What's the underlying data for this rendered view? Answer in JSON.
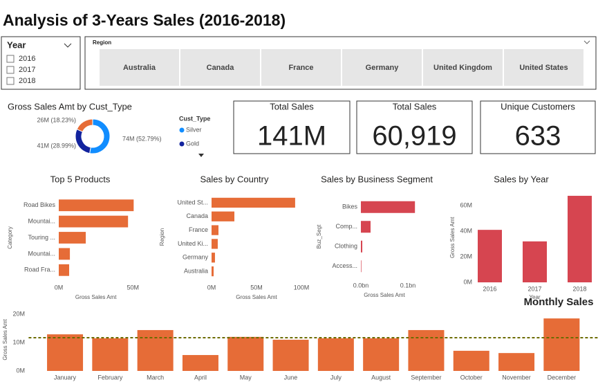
{
  "title": "Analysis of 3-Years Sales (2016-2018)",
  "year_slicer": {
    "title": "Year",
    "options": [
      "2016",
      "2017",
      "2018"
    ]
  },
  "region_slicer": {
    "title": "Region",
    "options": [
      "Australia",
      "Canada",
      "France",
      "Germany",
      "United Kingdom",
      "United States"
    ]
  },
  "cards": [
    {
      "label": "Total Sales",
      "value": "141M"
    },
    {
      "label": "Total Sales",
      "value": "60,919"
    },
    {
      "label": "Unique Customers",
      "value": "633"
    }
  ],
  "chart_data": [
    {
      "type": "pie",
      "donut": true,
      "title": "Gross Sales Amt by Cust_Type",
      "legend_title": "Cust_Type",
      "categories": [
        "Silver",
        "Gold",
        null
      ],
      "values": [
        52.79,
        28.99,
        18.23
      ],
      "value_labels": [
        "74M (52.79%)",
        "41M (28.99%)",
        "26M (18.23%)"
      ],
      "colors": [
        "#118DFF",
        "#12239E",
        "#E66C37"
      ]
    },
    {
      "type": "bar",
      "orientation": "horizontal",
      "title": "Top 5 Products",
      "categories": [
        "Road Bikes",
        "Mountai...",
        "Touring ...",
        "Mountai...",
        "Road Fra..."
      ],
      "values": [
        50.5,
        46.7,
        18.2,
        7.5,
        7
      ],
      "color": "#E66C37",
      "xlim": [
        0,
        55
      ],
      "xticks": [
        {
          "value": 0,
          "label": "0M"
        },
        {
          "value": 50,
          "label": "50M"
        }
      ],
      "x_label": "Gross Sales Amt",
      "y_label": "Category"
    },
    {
      "type": "bar",
      "orientation": "horizontal",
      "title": "Sales by Country",
      "categories": [
        "United St...",
        "Canada",
        "France",
        "United Ki...",
        "Germany",
        "Australia"
      ],
      "values": [
        93,
        25.4,
        7.7,
        6.9,
        3.8,
        2.3
      ],
      "color": "#E66C37",
      "xlim": [
        0,
        100
      ],
      "xticks": [
        {
          "value": 0,
          "label": "0M"
        },
        {
          "value": 50,
          "label": "50M"
        },
        {
          "value": 100,
          "label": "100M"
        }
      ],
      "x_label": "Gross Sales Amt",
      "y_label": "Region"
    },
    {
      "type": "bar",
      "orientation": "horizontal",
      "title": "Sales by Business Segment",
      "categories": [
        "Bikes",
        "Comp...",
        "Clothing",
        "Access..."
      ],
      "values": [
        0.115,
        0.0206,
        0.003,
        0.001
      ],
      "color": "#D64550",
      "xlim": [
        0,
        0.12
      ],
      "xticks": [
        {
          "value": 0,
          "label": "0.0bn"
        },
        {
          "value": 0.1,
          "label": "0.1bn"
        }
      ],
      "x_label": "Gross Sales Amt",
      "y_label": "Buz_Segt"
    },
    {
      "type": "bar",
      "orientation": "vertical",
      "title": "Sales by Year",
      "categories": [
        "2016",
        "2017",
        "2018"
      ],
      "values": [
        41,
        32,
        67.6
      ],
      "color": "#D64550",
      "ylim": [
        0,
        70
      ],
      "yticks": [
        {
          "value": 0,
          "label": "0M"
        },
        {
          "value": 20,
          "label": "20M"
        },
        {
          "value": 40,
          "label": "40M"
        },
        {
          "value": 60,
          "label": "60M"
        }
      ],
      "x_label": "Year",
      "y_label": "Gross Sales Amt"
    },
    {
      "type": "bar",
      "orientation": "vertical",
      "title": "Monthly Sales",
      "categories": [
        "January",
        "February",
        "March",
        "April",
        "May",
        "June",
        "July",
        "August",
        "September",
        "October",
        "November",
        "December"
      ],
      "values": [
        12.9,
        11.5,
        14.4,
        5.6,
        12.0,
        11.0,
        11.5,
        11.5,
        14.4,
        7.1,
        6.3,
        18.5
      ],
      "color": "#E66C37",
      "ylim": [
        0,
        22
      ],
      "yticks": [
        {
          "value": 0,
          "label": "0M"
        },
        {
          "value": 10,
          "label": "10M"
        },
        {
          "value": 20,
          "label": "20M"
        }
      ],
      "reference_line": {
        "value": 11.7,
        "color": "#6B6B00"
      },
      "y_label": "Gross Sales Amt"
    }
  ]
}
